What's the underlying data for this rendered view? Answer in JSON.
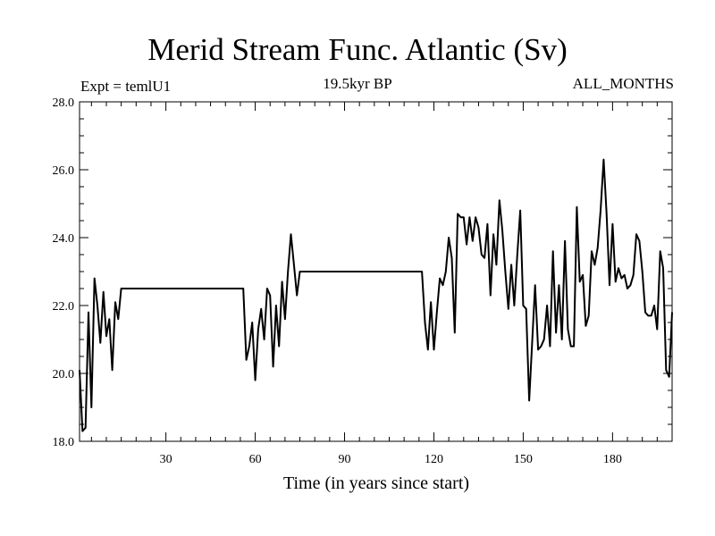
{
  "chart_data": {
    "type": "line",
    "title": "Merid Stream Func. Atlantic (Sv)",
    "subtitle": "19.5kyr BP",
    "left_annotation": "Expt = temlU1",
    "right_annotation": "ALL_MONTHS",
    "xlabel": "Time (in years since start)",
    "ylabel": "",
    "xlim": [
      1,
      200
    ],
    "ylim": [
      18.0,
      28.0
    ],
    "x_ticks": [
      30,
      60,
      90,
      120,
      150,
      180
    ],
    "x_tick_labels": [
      "30",
      "60",
      "90",
      "120",
      "150",
      "180"
    ],
    "y_ticks": [
      18.0,
      20.0,
      22.0,
      24.0,
      26.0,
      28.0
    ],
    "y_tick_labels": [
      "18.0",
      "20.0",
      "22.0",
      "24.0",
      "26.0",
      "28.0"
    ],
    "series": [
      {
        "name": "Merid Stream Func. Atlantic",
        "x": [
          1,
          2,
          3,
          4,
          5,
          6,
          7,
          8,
          9,
          10,
          11,
          12,
          13,
          14,
          15,
          56,
          57,
          58,
          59,
          60,
          61,
          62,
          63,
          64,
          65,
          66,
          67,
          68,
          69,
          70,
          71,
          72,
          73,
          74,
          75,
          116,
          117,
          118,
          119,
          120,
          121,
          122,
          123,
          124,
          125,
          126,
          127,
          128,
          129,
          130,
          131,
          132,
          133,
          134,
          135,
          136,
          137,
          138,
          139,
          140,
          141,
          142,
          143,
          144,
          145,
          146,
          147,
          148,
          149,
          150,
          151,
          152,
          153,
          154,
          155,
          156,
          157,
          158,
          159,
          160,
          161,
          162,
          163,
          164,
          165,
          166,
          167,
          168,
          169,
          170,
          171,
          172,
          173,
          174,
          175,
          176,
          177,
          178,
          179,
          180,
          181,
          182,
          183,
          184,
          185,
          186,
          187,
          188,
          189,
          190,
          191,
          192,
          193,
          194,
          195,
          196,
          197,
          198,
          199,
          200
        ],
        "y": [
          20.1,
          18.3,
          18.4,
          21.8,
          19.0,
          22.8,
          22.0,
          20.9,
          22.4,
          21.1,
          21.6,
          20.1,
          22.1,
          21.6,
          22.5,
          22.5,
          20.4,
          20.8,
          21.5,
          19.8,
          21.3,
          21.9,
          21.0,
          22.5,
          22.3,
          20.2,
          22.0,
          20.8,
          22.7,
          21.6,
          23.0,
          24.1,
          23.2,
          22.3,
          23.0,
          23.0,
          21.5,
          20.7,
          22.1,
          20.7,
          21.8,
          22.8,
          22.6,
          23.0,
          24.0,
          23.4,
          21.2,
          24.7,
          24.6,
          24.6,
          23.8,
          24.6,
          23.9,
          24.6,
          24.3,
          23.5,
          23.4,
          24.4,
          22.3,
          24.1,
          23.2,
          25.1,
          24.2,
          23.0,
          21.9,
          23.2,
          22.0,
          23.5,
          24.8,
          22.0,
          21.9,
          19.2,
          20.9,
          22.6,
          20.7,
          20.8,
          21.0,
          22.0,
          20.8,
          23.6,
          21.2,
          22.6,
          21.0,
          23.9,
          21.3,
          20.8,
          20.8,
          24.9,
          22.7,
          22.9,
          21.4,
          21.7,
          23.6,
          23.2,
          23.7,
          24.8,
          26.3,
          24.7,
          22.6,
          24.4,
          22.7,
          23.1,
          22.8,
          22.9,
          22.5,
          22.6,
          22.9,
          24.1,
          23.9,
          23.0,
          21.8,
          21.7,
          21.7,
          22.0,
          21.3,
          23.6,
          23.1,
          20.1,
          19.9,
          21.8
        ]
      }
    ]
  }
}
